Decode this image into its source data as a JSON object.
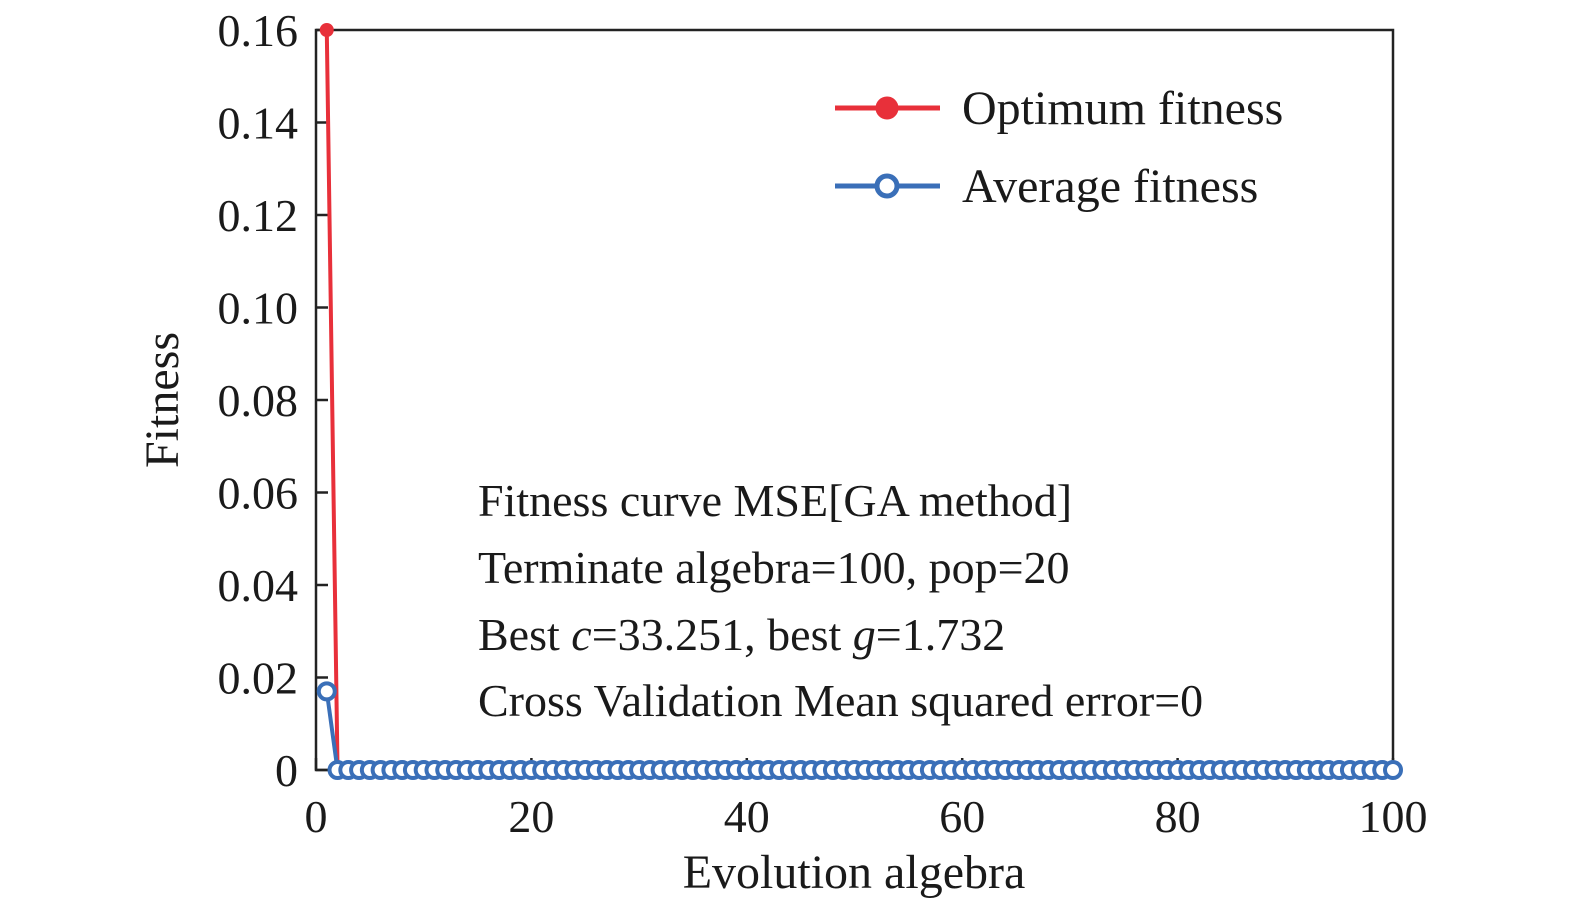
{
  "chart_data": {
    "type": "line",
    "xlabel": "Evolution algebra",
    "ylabel": "Fitness",
    "xlim": [
      0,
      100
    ],
    "ylim": [
      0,
      0.16
    ],
    "x_ticks": [
      "0",
      "20",
      "40",
      "60",
      "80",
      "100"
    ],
    "y_ticks": [
      "0",
      "0.02",
      "0.04",
      "0.06",
      "0.08",
      "0.10",
      "0.12",
      "0.14",
      "0.16"
    ],
    "grid": false,
    "legend_position": "top-right",
    "series": [
      {
        "name": "Optimum fitness",
        "color": "#e8303a",
        "marker": "filled-circle",
        "x": [
          1,
          2,
          3,
          4,
          5,
          6,
          7,
          8,
          9,
          10,
          11,
          12,
          13,
          14,
          15,
          16,
          17,
          18,
          19,
          20,
          21,
          22,
          23,
          24,
          25,
          26,
          27,
          28,
          29,
          30,
          31,
          32,
          33,
          34,
          35,
          36,
          37,
          38,
          39,
          40,
          41,
          42,
          43,
          44,
          45,
          46,
          47,
          48,
          49,
          50,
          51,
          52,
          53,
          54,
          55,
          56,
          57,
          58,
          59,
          60,
          61,
          62,
          63,
          64,
          65,
          66,
          67,
          68,
          69,
          70,
          71,
          72,
          73,
          74,
          75,
          76,
          77,
          78,
          79,
          80,
          81,
          82,
          83,
          84,
          85,
          86,
          87,
          88,
          89,
          90,
          91,
          92,
          93,
          94,
          95,
          96,
          97,
          98,
          99,
          100
        ],
        "y": [
          0.16,
          0,
          0,
          0,
          0,
          0,
          0,
          0,
          0,
          0,
          0,
          0,
          0,
          0,
          0,
          0,
          0,
          0,
          0,
          0,
          0,
          0,
          0,
          0,
          0,
          0,
          0,
          0,
          0,
          0,
          0,
          0,
          0,
          0,
          0,
          0,
          0,
          0,
          0,
          0,
          0,
          0,
          0,
          0,
          0,
          0,
          0,
          0,
          0,
          0,
          0,
          0,
          0,
          0,
          0,
          0,
          0,
          0,
          0,
          0,
          0,
          0,
          0,
          0,
          0,
          0,
          0,
          0,
          0,
          0,
          0,
          0,
          0,
          0,
          0,
          0,
          0,
          0,
          0,
          0,
          0,
          0,
          0,
          0,
          0,
          0,
          0,
          0,
          0,
          0,
          0,
          0,
          0,
          0,
          0,
          0,
          0,
          0,
          0,
          0
        ]
      },
      {
        "name": "Average fitness",
        "color": "#3a6fb8",
        "marker": "open-circle",
        "x": [
          1,
          2,
          3,
          4,
          5,
          6,
          7,
          8,
          9,
          10,
          11,
          12,
          13,
          14,
          15,
          16,
          17,
          18,
          19,
          20,
          21,
          22,
          23,
          24,
          25,
          26,
          27,
          28,
          29,
          30,
          31,
          32,
          33,
          34,
          35,
          36,
          37,
          38,
          39,
          40,
          41,
          42,
          43,
          44,
          45,
          46,
          47,
          48,
          49,
          50,
          51,
          52,
          53,
          54,
          55,
          56,
          57,
          58,
          59,
          60,
          61,
          62,
          63,
          64,
          65,
          66,
          67,
          68,
          69,
          70,
          71,
          72,
          73,
          74,
          75,
          76,
          77,
          78,
          79,
          80,
          81,
          82,
          83,
          84,
          85,
          86,
          87,
          88,
          89,
          90,
          91,
          92,
          93,
          94,
          95,
          96,
          97,
          98,
          99,
          100
        ],
        "y": [
          0.017,
          0,
          0,
          0,
          0,
          0,
          0,
          0,
          0,
          0,
          0,
          0,
          0,
          0,
          0,
          0,
          0,
          0,
          0,
          0,
          0,
          0,
          0,
          0,
          0,
          0,
          0,
          0,
          0,
          0,
          0,
          0,
          0,
          0,
          0,
          0,
          0,
          0,
          0,
          0,
          0,
          0,
          0,
          0,
          0,
          0,
          0,
          0,
          0,
          0,
          0,
          0,
          0,
          0,
          0,
          0,
          0,
          0,
          0,
          0,
          0,
          0,
          0,
          0,
          0,
          0,
          0,
          0,
          0,
          0,
          0,
          0,
          0,
          0,
          0,
          0,
          0,
          0,
          0,
          0,
          0,
          0,
          0,
          0,
          0,
          0,
          0,
          0,
          0,
          0,
          0,
          0,
          0,
          0,
          0,
          0,
          0,
          0,
          0,
          0
        ]
      }
    ],
    "annotations": {
      "line1": "Fitness curve MSE[GA method]",
      "line2": "Terminate algebra=100, pop=20",
      "line3": {
        "part1": "Best ",
        "var1": "c",
        "part2": "=33.251, best ",
        "var2": "g",
        "part3": "=1.732"
      },
      "line4": "Cross Validation Mean squared error=0"
    }
  }
}
